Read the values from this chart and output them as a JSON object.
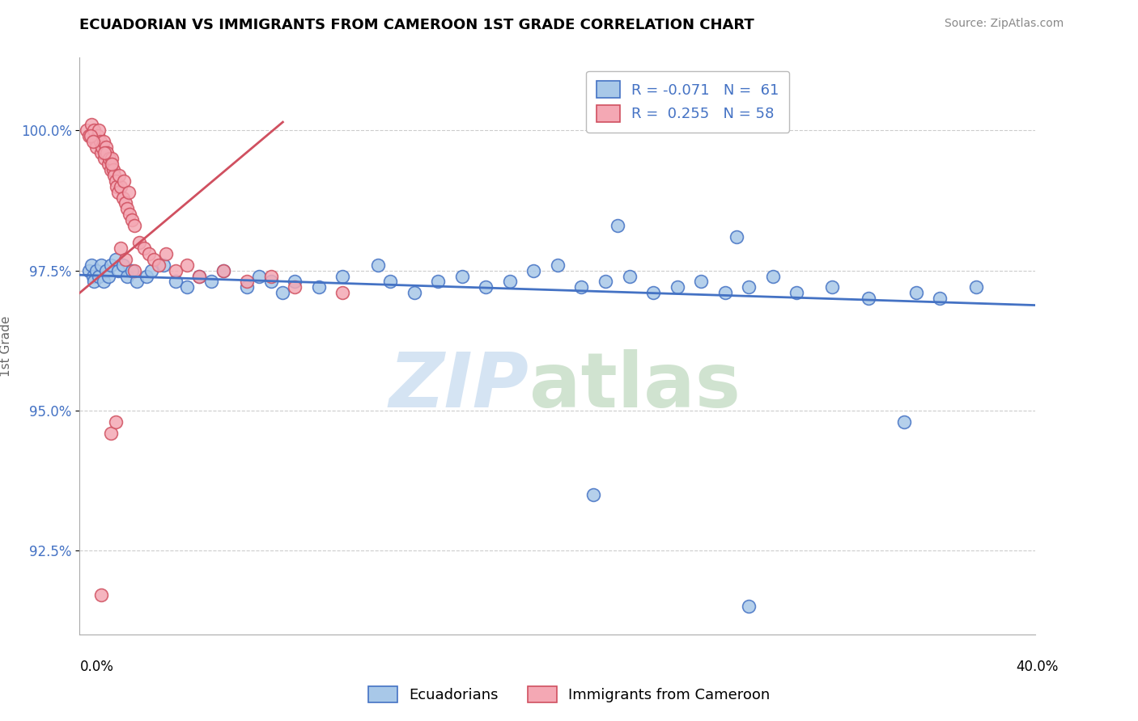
{
  "title": "ECUADORIAN VS IMMIGRANTS FROM CAMEROON 1ST GRADE CORRELATION CHART",
  "source": "Source: ZipAtlas.com",
  "ylabel": "1st Grade",
  "xmin": 0.0,
  "xmax": 40.0,
  "ymin": 91.0,
  "ymax": 101.3,
  "blue_color": "#A8C8E8",
  "pink_color": "#F4A8B4",
  "blue_edge_color": "#4472C4",
  "pink_edge_color": "#D05060",
  "blue_line_color": "#4472C4",
  "pink_line_color": "#D05060",
  "ytick_vals": [
    92.5,
    95.0,
    97.5,
    100.0
  ],
  "blue_trend": [
    97.42,
    96.88
  ],
  "pink_trend_x": [
    0.0,
    8.5
  ],
  "pink_trend_y": [
    97.1,
    100.15
  ],
  "blue_x": [
    0.4,
    0.5,
    0.55,
    0.6,
    0.7,
    0.8,
    0.9,
    1.0,
    1.1,
    1.2,
    1.3,
    1.5,
    1.6,
    1.8,
    2.0,
    2.2,
    2.4,
    2.8,
    3.0,
    3.5,
    4.0,
    4.5,
    5.0,
    5.5,
    6.0,
    7.0,
    7.5,
    8.0,
    8.5,
    9.0,
    10.0,
    11.0,
    12.5,
    13.0,
    14.0,
    15.0,
    16.0,
    17.0,
    18.0,
    19.0,
    20.0,
    21.0,
    22.0,
    23.0,
    24.0,
    25.0,
    26.0,
    27.0,
    28.0,
    29.0,
    30.0,
    31.5,
    33.0,
    35.0,
    36.0,
    37.5,
    22.5,
    27.5,
    34.5,
    21.5,
    28.0
  ],
  "blue_y": [
    97.5,
    97.6,
    97.4,
    97.3,
    97.5,
    97.4,
    97.6,
    97.3,
    97.5,
    97.4,
    97.6,
    97.7,
    97.5,
    97.6,
    97.4,
    97.5,
    97.3,
    97.4,
    97.5,
    97.6,
    97.3,
    97.2,
    97.4,
    97.3,
    97.5,
    97.2,
    97.4,
    97.3,
    97.1,
    97.3,
    97.2,
    97.4,
    97.6,
    97.3,
    97.1,
    97.3,
    97.4,
    97.2,
    97.3,
    97.5,
    97.6,
    97.2,
    97.3,
    97.4,
    97.1,
    97.2,
    97.3,
    97.1,
    97.2,
    97.4,
    97.1,
    97.2,
    97.0,
    97.1,
    97.0,
    97.2,
    98.3,
    98.1,
    94.8,
    93.5,
    91.5
  ],
  "pink_x": [
    0.3,
    0.4,
    0.5,
    0.6,
    0.65,
    0.7,
    0.75,
    0.8,
    0.85,
    0.9,
    0.95,
    1.0,
    1.05,
    1.1,
    1.15,
    1.2,
    1.25,
    1.3,
    1.35,
    1.4,
    1.45,
    1.5,
    1.55,
    1.6,
    1.7,
    1.8,
    1.9,
    2.0,
    2.1,
    2.2,
    2.3,
    2.5,
    2.7,
    2.9,
    3.1,
    3.3,
    3.6,
    4.0,
    4.5,
    5.0,
    6.0,
    7.0,
    8.0,
    9.0,
    11.0,
    0.45,
    0.55,
    1.05,
    1.35,
    1.65,
    1.85,
    2.05,
    1.7,
    1.9,
    2.3,
    1.3,
    1.5,
    0.9
  ],
  "pink_y": [
    100.0,
    99.9,
    100.1,
    100.0,
    99.8,
    99.7,
    99.9,
    100.0,
    99.8,
    99.6,
    99.7,
    99.8,
    99.5,
    99.7,
    99.6,
    99.4,
    99.5,
    99.3,
    99.5,
    99.3,
    99.2,
    99.1,
    99.0,
    98.9,
    99.0,
    98.8,
    98.7,
    98.6,
    98.5,
    98.4,
    98.3,
    98.0,
    97.9,
    97.8,
    97.7,
    97.6,
    97.8,
    97.5,
    97.6,
    97.4,
    97.5,
    97.3,
    97.4,
    97.2,
    97.1,
    99.9,
    99.8,
    99.6,
    99.4,
    99.2,
    99.1,
    98.9,
    97.9,
    97.7,
    97.5,
    94.6,
    94.8,
    91.7
  ]
}
